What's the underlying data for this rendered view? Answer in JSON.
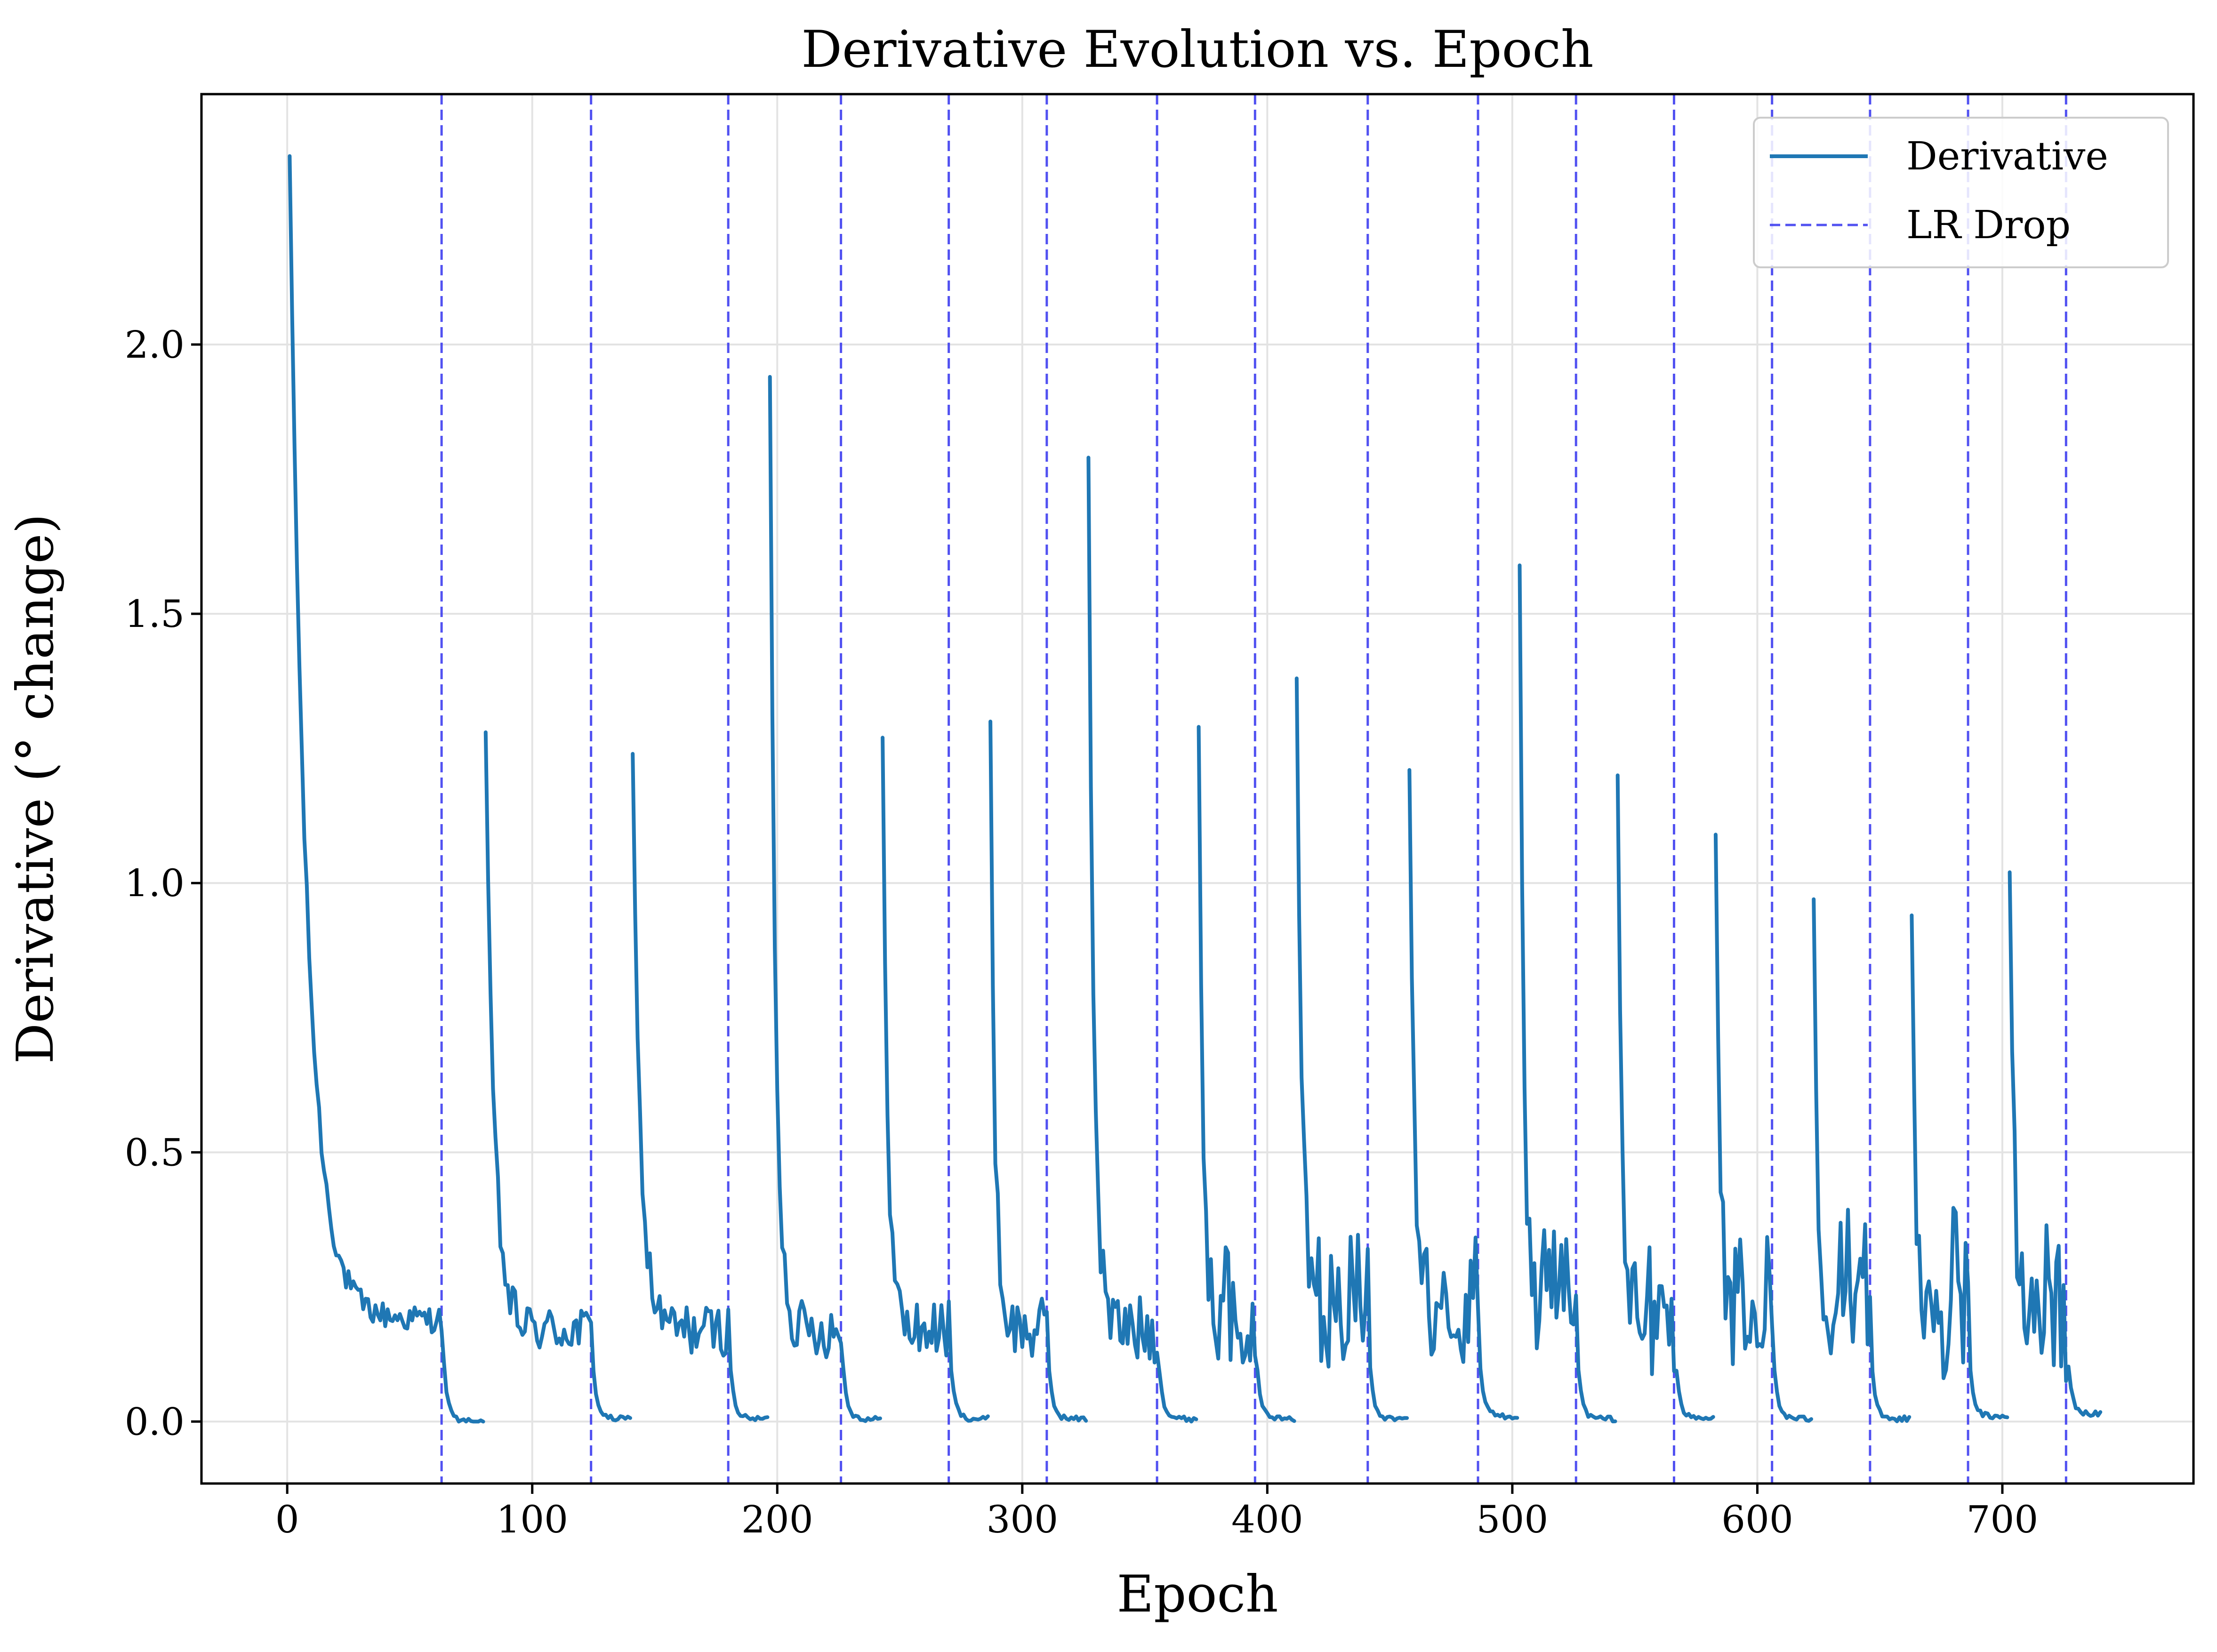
{
  "chart_data": {
    "type": "line",
    "title": "Derivative Evolution vs. Epoch",
    "xlabel": "Epoch",
    "ylabel": "Derivative (° change)",
    "xlim": [
      -35,
      778
    ],
    "ylim": [
      -0.115,
      2.465
    ],
    "xticks": [
      0,
      100,
      200,
      300,
      400,
      500,
      600,
      700
    ],
    "yticks": [
      0.0,
      0.5,
      1.0,
      1.5,
      2.0
    ],
    "xtick_labels": [
      "0",
      "100",
      "200",
      "300",
      "400",
      "500",
      "600",
      "700"
    ],
    "ytick_labels": [
      "0.0",
      "0.5",
      "1.0",
      "1.5",
      "2.0"
    ],
    "grid": true,
    "legend_position": "top-right",
    "legend": [
      {
        "label": "Derivative",
        "style": "solid",
        "color": "#1f77b4"
      },
      {
        "label": "LR Drop",
        "style": "dashed",
        "color": "#3333ee"
      }
    ],
    "series": [
      {
        "name": "Derivative",
        "color": "#1f77b4",
        "segments": [
          {
            "start": 1,
            "end": 80,
            "peak": 2.35,
            "drop": 63,
            "tail": 0.0
          },
          {
            "start": 81,
            "end": 140,
            "peak": 1.28,
            "drop": 124,
            "tail": 0.005
          },
          {
            "start": 141,
            "end": 196,
            "peak": 1.24,
            "drop": 180,
            "tail": 0.005
          },
          {
            "start": 197,
            "end": 242,
            "peak": 1.94,
            "drop": 226,
            "tail": 0.005
          },
          {
            "start": 243,
            "end": 286,
            "peak": 1.27,
            "drop": 270,
            "tail": 0.005
          },
          {
            "start": 287,
            "end": 326,
            "peak": 1.3,
            "drop": 310,
            "tail": 0.005
          },
          {
            "start": 327,
            "end": 371,
            "peak": 1.79,
            "drop": 355,
            "tail": 0.005
          },
          {
            "start": 372,
            "end": 411,
            "peak": 1.29,
            "drop": 395,
            "tail": 0.005
          },
          {
            "start": 412,
            "end": 457,
            "peak": 1.38,
            "drop": 441,
            "tail": 0.005
          },
          {
            "start": 458,
            "end": 502,
            "peak": 1.21,
            "drop": 486,
            "tail": 0.01
          },
          {
            "start": 503,
            "end": 542,
            "peak": 1.59,
            "drop": 526,
            "tail": 0.005
          },
          {
            "start": 543,
            "end": 582,
            "peak": 1.2,
            "drop": 566,
            "tail": 0.005
          },
          {
            "start": 583,
            "end": 622,
            "peak": 1.09,
            "drop": 606,
            "tail": 0.005
          },
          {
            "start": 623,
            "end": 662,
            "peak": 0.97,
            "drop": 646,
            "tail": 0.005
          },
          {
            "start": 663,
            "end": 702,
            "peak": 0.94,
            "drop": 686,
            "tail": 0.01
          },
          {
            "start": 703,
            "end": 740,
            "peak": 1.02,
            "drop": 726,
            "tail": 0.015
          }
        ]
      }
    ],
    "lr_drops": [
      63,
      124,
      180,
      226,
      270,
      310,
      355,
      395,
      441,
      486,
      526,
      566,
      606,
      646,
      686,
      726
    ]
  }
}
